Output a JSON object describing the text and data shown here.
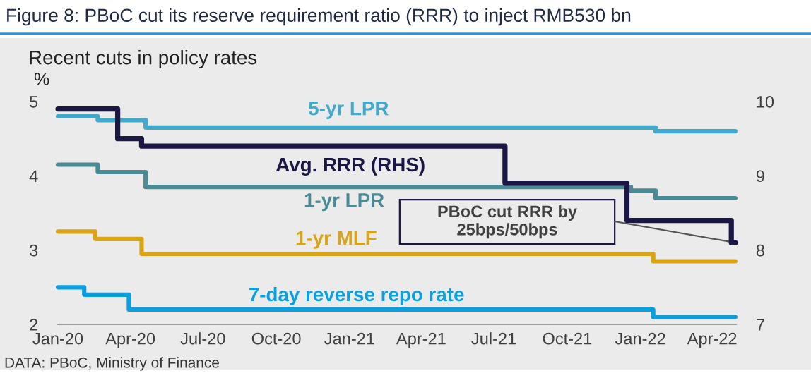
{
  "chart_data": {
    "type": "step",
    "title": "Figure 8: PBoC cut its reserve requirement ratio (RRR) to inject RMB530 bn",
    "subtitle": "Recent cuts in policy rates",
    "ylabel": "%",
    "xlim": [
      "2020-01-01",
      "2022-05-01"
    ],
    "xticks": [
      {
        "value": "2020-01-01",
        "label": "Jan-20"
      },
      {
        "value": "2020-04-01",
        "label": "Apr-20"
      },
      {
        "value": "2020-07-01",
        "label": "Jul-20"
      },
      {
        "value": "2020-10-01",
        "label": "Oct-20"
      },
      {
        "value": "2021-01-01",
        "label": "Jan-21"
      },
      {
        "value": "2021-04-01",
        "label": "Apr-21"
      },
      {
        "value": "2021-07-01",
        "label": "Jul-21"
      },
      {
        "value": "2021-10-01",
        "label": "Oct-21"
      },
      {
        "value": "2022-01-01",
        "label": "Jan-22"
      },
      {
        "value": "2022-04-01",
        "label": "Apr-22"
      }
    ],
    "ylim": [
      2,
      5
    ],
    "yticks": [
      2,
      3,
      4,
      5
    ],
    "y2lim": [
      7,
      10
    ],
    "y2ticks": [
      7,
      8,
      9,
      10
    ],
    "grid": false,
    "legend": false,
    "series": [
      {
        "name": "5-yr LPR",
        "color": "#41a9c9",
        "x": [
          "2020-01-01",
          "2020-02-20",
          "2020-04-20",
          "2022-01-20",
          "2022-04-30"
        ],
        "values": [
          4.8,
          4.75,
          4.65,
          4.6,
          4.6
        ]
      },
      {
        "name": "Avg. RRR (RHS)",
        "color": "#1b1745",
        "axis": "y2",
        "x": [
          "2020-01-01",
          "2020-03-16",
          "2020-04-15",
          "2021-07-15",
          "2021-12-15",
          "2022-04-25",
          "2022-04-30"
        ],
        "values": [
          9.9,
          9.5,
          9.4,
          8.9,
          8.4,
          8.1,
          8.1
        ]
      },
      {
        "name": "1-yr LPR",
        "color": "#4a8a94",
        "x": [
          "2020-01-01",
          "2020-02-20",
          "2020-04-20",
          "2021-12-20",
          "2022-01-20",
          "2022-04-30"
        ],
        "values": [
          4.15,
          4.05,
          3.85,
          3.8,
          3.7,
          3.7
        ]
      },
      {
        "name": "1-yr MLF",
        "color": "#d9a416",
        "x": [
          "2020-01-01",
          "2020-02-17",
          "2020-04-15",
          "2022-01-17",
          "2022-04-30"
        ],
        "values": [
          3.25,
          3.15,
          2.95,
          2.85,
          2.85
        ]
      },
      {
        "name": "7-day reverse repo rate",
        "color": "#0aa0e0",
        "x": [
          "2020-01-01",
          "2020-02-03",
          "2020-03-30",
          "2022-01-17",
          "2022-04-30"
        ],
        "values": [
          2.5,
          2.4,
          2.2,
          2.1,
          2.1
        ]
      }
    ],
    "annotations": [
      "PBoC cut RRR by\n25bps/50bps",
      "DATA: PBoC, Ministry of Finance"
    ]
  }
}
